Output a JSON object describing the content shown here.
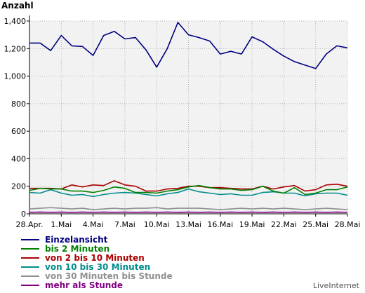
{
  "chart_data": {
    "type": "line",
    "title": "Anzahl",
    "categories": [
      "28.Apr.",
      "29.Apr.",
      "30.Apr.",
      "1.Mai",
      "2.Mai",
      "3.Mai",
      "4.Mai",
      "5.Mai",
      "6.Mai",
      "7.Mai",
      "8.Mai",
      "9.Mai",
      "10.Mai",
      "11.Mai",
      "12.Mai",
      "13.Mai",
      "14.Mai",
      "15.Mai",
      "16.Mai",
      "17.Mai",
      "18.Mai",
      "19.Mai",
      "20.Mai",
      "21.Mai",
      "22.Mai",
      "23.Mai",
      "24.Mai",
      "25.Mai",
      "26.Mai",
      "27.Mai",
      "28.Mai"
    ],
    "x_tick_labels": [
      "28.Apr.",
      "1.Mai",
      "4.Mai",
      "7.Mai",
      "10.Mai",
      "13.Mai",
      "16.Mai",
      "19.Mai",
      "22.Mai",
      "25.Mai",
      "28.Mai"
    ],
    "y_tick_labels": [
      "0",
      "200",
      "400",
      "600",
      "800",
      "1,000",
      "1,200",
      "1,400"
    ],
    "ylim": [
      0,
      1400
    ],
    "grid": true,
    "legend_position": "bottom",
    "series": [
      {
        "name": "Einzelansicht",
        "color": "#000080",
        "values": [
          1240,
          1240,
          1185,
          1295,
          1220,
          1215,
          1150,
          1295,
          1325,
          1270,
          1280,
          1190,
          1065,
          1200,
          1390,
          1300,
          1280,
          1255,
          1160,
          1180,
          1160,
          1285,
          1250,
          1195,
          1145,
          1105,
          1080,
          1055,
          1160,
          1220,
          1205
        ]
      },
      {
        "name": "bis 2 Minuten",
        "color": "#008000",
        "values": [
          170,
          185,
          180,
          180,
          165,
          165,
          155,
          170,
          195,
          185,
          155,
          155,
          150,
          165,
          175,
          195,
          205,
          190,
          180,
          180,
          170,
          175,
          200,
          165,
          150,
          190,
          140,
          150,
          175,
          175,
          195
        ]
      },
      {
        "name": "von 2 bis 10 Minuten",
        "color": "#aa0000",
        "values": [
          185,
          185,
          185,
          180,
          210,
          195,
          210,
          205,
          240,
          210,
          200,
          165,
          165,
          180,
          185,
          200,
          200,
          190,
          190,
          185,
          180,
          180,
          200,
          180,
          195,
          205,
          165,
          175,
          210,
          215,
          200
        ]
      },
      {
        "name": "von 10 bis 30 Minuten",
        "color": "#008c8c",
        "values": [
          155,
          150,
          175,
          150,
          135,
          140,
          125,
          140,
          150,
          155,
          150,
          140,
          130,
          145,
          155,
          180,
          160,
          150,
          140,
          145,
          135,
          135,
          155,
          160,
          150,
          150,
          130,
          145,
          150,
          150,
          135
        ]
      },
      {
        "name": "von 30 Minuten bis Stunde",
        "color": "#909090",
        "values": [
          35,
          40,
          45,
          40,
          35,
          40,
          30,
          35,
          40,
          35,
          40,
          40,
          45,
          35,
          40,
          40,
          40,
          35,
          30,
          35,
          40,
          35,
          40,
          35,
          40,
          35,
          30,
          35,
          40,
          35,
          30
        ]
      },
      {
        "name": "mehr als Stunde",
        "color": "#800080",
        "values": [
          10,
          12,
          10,
          12,
          10,
          12,
          10,
          12,
          10,
          12,
          10,
          12,
          10,
          12,
          10,
          12,
          10,
          12,
          10,
          12,
          10,
          12,
          10,
          12,
          10,
          12,
          10,
          12,
          10,
          12,
          10
        ]
      }
    ]
  },
  "brand": "LiveInternet"
}
